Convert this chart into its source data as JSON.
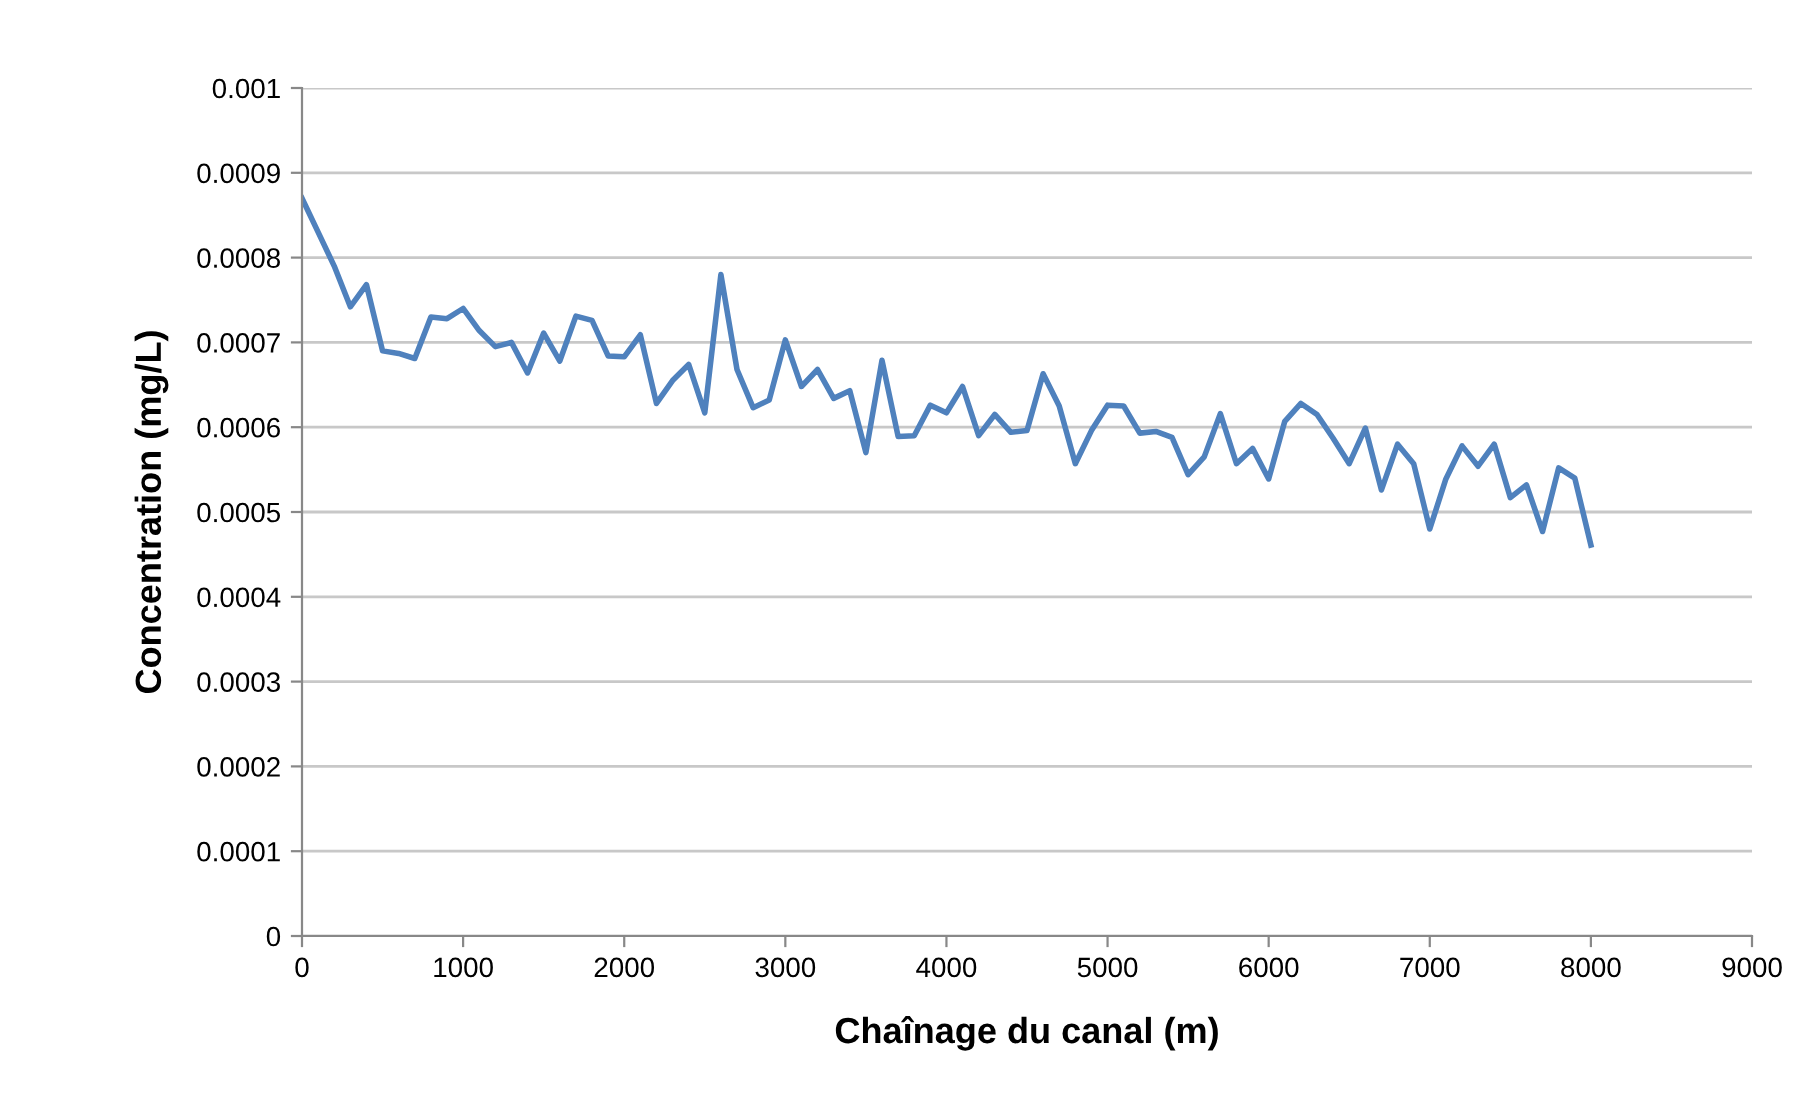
{
  "chart_data": {
    "type": "line",
    "xlabel": "Chaînage du canal (m)",
    "ylabel": "Concentration (mg/L)",
    "x": [
      0,
      100,
      200,
      300,
      400,
      500,
      600,
      700,
      800,
      900,
      1000,
      1100,
      1200,
      1300,
      1400,
      1500,
      1600,
      1700,
      1800,
      1900,
      2000,
      2100,
      2200,
      2300,
      2400,
      2500,
      2600,
      2700,
      2800,
      2900,
      3000,
      3100,
      3200,
      3300,
      3400,
      3500,
      3600,
      3700,
      3800,
      3900,
      4000,
      4100,
      4200,
      4300,
      4400,
      4500,
      4600,
      4700,
      4800,
      4900,
      5000,
      5100,
      5200,
      5300,
      5400,
      5500,
      5600,
      5700,
      5800,
      5900,
      6000,
      6100,
      6200,
      6300,
      6400,
      6500,
      6600,
      6700,
      6800,
      6900,
      7000,
      7100,
      7200,
      7300,
      7400,
      7500,
      7600,
      7700,
      7800,
      7900,
      8000
    ],
    "series": [
      {
        "color": "#4f81bd",
        "values": [
          0.00087,
          0.00083,
          0.00079,
          0.000742,
          0.000768,
          0.00069,
          0.000687,
          0.000681,
          0.00073,
          0.000728,
          0.00074,
          0.000714,
          0.000695,
          0.0007,
          0.000664,
          0.000711,
          0.000678,
          0.000731,
          0.000726,
          0.000684,
          0.000683,
          0.000709,
          0.000628,
          0.000655,
          0.000674,
          0.000617,
          0.00078,
          0.000668,
          0.000623,
          0.000632,
          0.000703,
          0.000648,
          0.000668,
          0.000634,
          0.000643,
          0.00057,
          0.000679,
          0.000589,
          0.00059,
          0.000626,
          0.000617,
          0.000648,
          0.00059,
          0.000615,
          0.000594,
          0.000596,
          0.000663,
          0.000625,
          0.000557,
          0.000596,
          0.000626,
          0.000625,
          0.000593,
          0.000595,
          0.000588,
          0.000544,
          0.000565,
          0.000616,
          0.000557,
          0.000575,
          0.000539,
          0.000607,
          0.000628,
          0.000615,
          0.000587,
          0.000557,
          0.000599,
          0.000526,
          0.00058,
          0.000557,
          0.00048,
          0.000539,
          0.000578,
          0.000554,
          0.00058,
          0.000517,
          0.000532,
          0.000477,
          0.000552,
          0.00054,
          0.000461
        ]
      }
    ],
    "xlim": [
      0,
      9000
    ],
    "xticks": [
      0,
      1000,
      2000,
      3000,
      4000,
      5000,
      6000,
      7000,
      8000,
      9000
    ],
    "ylim": [
      0,
      0.001
    ],
    "yticks": [
      0,
      0.0001,
      0.0002,
      0.0003,
      0.0004,
      0.0005,
      0.0006,
      0.0007,
      0.0008,
      0.0009,
      0.001
    ],
    "grid": "y",
    "legend": false,
    "marker": "none",
    "line_style": "solid"
  }
}
